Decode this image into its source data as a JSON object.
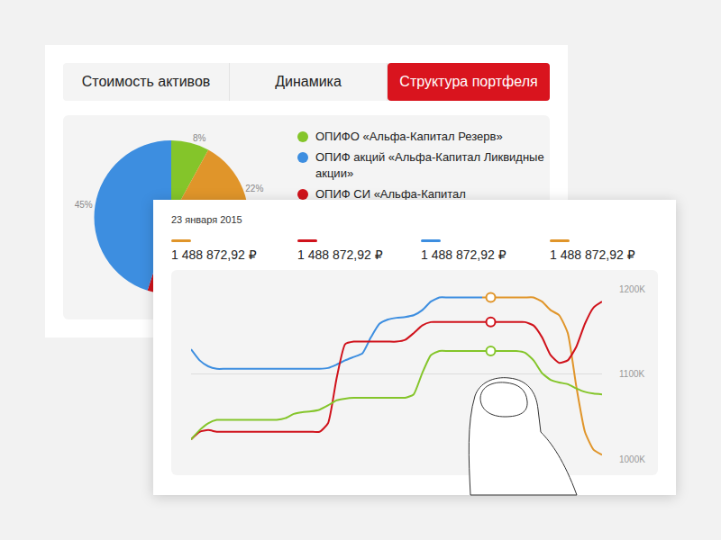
{
  "tabs": {
    "items": [
      "Стоимость активов",
      "Динамика",
      "Структура портфеля"
    ],
    "active": "Структура портфеля"
  },
  "readout": {
    "date": "23 января 2015",
    "items": [
      {
        "color": "#e0952a",
        "text": "1 488 872,92 ₽"
      },
      {
        "color": "#d0121b",
        "text": "1 488 872,92 ₽"
      },
      {
        "color": "#3d8ee0",
        "text": "1 488 872,92 ₽"
      },
      {
        "color": "#e0952a",
        "text": "1 488 872,92 ₽"
      }
    ]
  },
  "chart_data": [
    {
      "type": "pie",
      "categories": [
        "ОПИФО «Альфа-Капитал Резерв»",
        null,
        "ОПИФ СИ «Альфа-Капитал",
        "ОПИФ акций «Альфа-Капитал Ликвидные акции»"
      ],
      "values": [
        8,
        22,
        25,
        45
      ],
      "value_labels": [
        "8%",
        "22%",
        null,
        "45%"
      ],
      "colors": [
        "#84c52a",
        "#e0952a",
        "#d0121b",
        "#3d8ee0"
      ],
      "data_labels": true
    },
    {
      "type": "line",
      "x": [
        0,
        1,
        2,
        3,
        4,
        5,
        6,
        7,
        8,
        9,
        10,
        11,
        12,
        13,
        14,
        15,
        16,
        17,
        18,
        19,
        20,
        21,
        22,
        23,
        24,
        25,
        26,
        27,
        28,
        29,
        30,
        31,
        32,
        33,
        34,
        35,
        36,
        37,
        38,
        39,
        40,
        41,
        42,
        43,
        44,
        45,
        46,
        47,
        48
      ],
      "xlim": [
        0,
        48
      ],
      "ylim": [
        1000000,
        1200000
      ],
      "yticks": [
        {
          "value": 1000000,
          "label": "1000K"
        },
        {
          "value": 1100000,
          "label": "1100K"
        },
        {
          "value": 1200000,
          "label": "1200K"
        }
      ],
      "grid": true,
      "tick_labels": "y",
      "series": [
        {
          "color": "#3d8ee0",
          "values": [
            1129000,
            1116000,
            1109000,
            1106000,
            1106000,
            1106000,
            1106000,
            1106000,
            1106000,
            1106000,
            1106000,
            1106000,
            1106000,
            1106000,
            1106000,
            1106000,
            1107000,
            1111000,
            1116000,
            1120000,
            1124000,
            1143000,
            1159000,
            1164000,
            1166000,
            1167000,
            1169000,
            1175000,
            1185000,
            1190000,
            1190000,
            1190000,
            1190000,
            1190000,
            1190000,
            null,
            null,
            null,
            null,
            null,
            null,
            null,
            null,
            null,
            null,
            null,
            null,
            null,
            null
          ]
        },
        {
          "color": "#e0952a",
          "values": [
            null,
            null,
            null,
            null,
            null,
            null,
            null,
            null,
            null,
            null,
            null,
            null,
            null,
            null,
            null,
            null,
            null,
            null,
            null,
            null,
            null,
            null,
            null,
            null,
            null,
            null,
            null,
            null,
            null,
            null,
            null,
            null,
            null,
            null,
            1190000,
            1190000,
            1190000,
            1190000,
            1190000,
            1190000,
            1190000,
            1185000,
            1175000,
            1169000,
            1148000,
            1085000,
            1032000,
            1011000,
            1005000
          ]
        },
        {
          "color": "#d0121b",
          "values": [
            1023000,
            1032000,
            1034000,
            1032000,
            1032000,
            1032000,
            1032000,
            1032000,
            1032000,
            1032000,
            1032000,
            1032000,
            1032000,
            1032000,
            1032000,
            1032000,
            1042000,
            1095000,
            1135000,
            1138000,
            1138000,
            1138000,
            1138000,
            1138000,
            1138000,
            1140000,
            1148000,
            1157000,
            1161000,
            1161000,
            1161000,
            1161000,
            1161000,
            1161000,
            1161000,
            1161000,
            1161000,
            1161000,
            1161000,
            1161000,
            1157000,
            1143000,
            1122000,
            1113000,
            1116000,
            1132000,
            1159000,
            1178000,
            1185000
          ]
        },
        {
          "color": "#84c52a",
          "values": [
            1023000,
            1034000,
            1042000,
            1046000,
            1046000,
            1046000,
            1046000,
            1046000,
            1046000,
            1046000,
            1046000,
            1048000,
            1053000,
            1055000,
            1056000,
            1058000,
            1063000,
            1069000,
            1071000,
            1072000,
            1072000,
            1072000,
            1072000,
            1072000,
            1072000,
            1072000,
            1076000,
            1101000,
            1122000,
            1127000,
            1127000,
            1127000,
            1127000,
            1127000,
            1127000,
            1127000,
            1127000,
            1127000,
            1127000,
            1125000,
            1116000,
            1101000,
            1093000,
            1090000,
            1088000,
            1083000,
            1079000,
            1077000,
            1076000
          ]
        },
        {
          "color": "#e0952a",
          "marker": "circle-open",
          "values": [
            null,
            null,
            null,
            null,
            null,
            null,
            null,
            null,
            null,
            null,
            null,
            null,
            null,
            null,
            null,
            null,
            null,
            null,
            null,
            null,
            null,
            null,
            null,
            null,
            null,
            null,
            null,
            null,
            null,
            null,
            null,
            null,
            null,
            null,
            null,
            1190000,
            null,
            null,
            null,
            null,
            null,
            null,
            null,
            null,
            null,
            null,
            null,
            null,
            null
          ]
        },
        {
          "color": "#d0121b",
          "marker": "circle-open",
          "values": [
            null,
            null,
            null,
            null,
            null,
            null,
            null,
            null,
            null,
            null,
            null,
            null,
            null,
            null,
            null,
            null,
            null,
            null,
            null,
            null,
            null,
            null,
            null,
            null,
            null,
            null,
            null,
            null,
            null,
            null,
            null,
            null,
            null,
            null,
            null,
            1161000,
            null,
            null,
            null,
            null,
            null,
            null,
            null,
            null,
            null,
            null,
            null,
            null,
            null
          ]
        },
        {
          "color": "#84c52a",
          "marker": "circle-open",
          "values": [
            null,
            null,
            null,
            null,
            null,
            null,
            null,
            null,
            null,
            null,
            null,
            null,
            null,
            null,
            null,
            null,
            null,
            null,
            null,
            null,
            null,
            null,
            null,
            null,
            null,
            null,
            null,
            null,
            null,
            null,
            null,
            null,
            null,
            null,
            null,
            1127000,
            null,
            null,
            null,
            null,
            null,
            null,
            null,
            null,
            null,
            null,
            null,
            null,
            null
          ]
        }
      ]
    }
  ]
}
